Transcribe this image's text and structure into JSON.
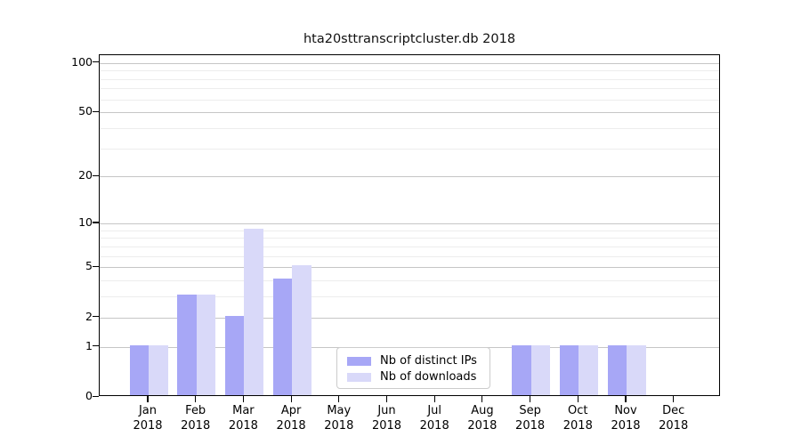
{
  "title": "hta20sttranscriptcluster.db 2018",
  "colors": {
    "ips_bar": "#a7a7f6",
    "downloads_bar": "#d9d9f9",
    "grid_major": "#c6c6c6",
    "grid_minor": "#ededed",
    "axis": "#000000",
    "legend_border": "#cccccc"
  },
  "legend": {
    "items": [
      {
        "label": "Nb of distinct IPs",
        "color_key": "ips_bar"
      },
      {
        "label": "Nb of downloads",
        "color_key": "downloads_bar"
      }
    ]
  },
  "x_axis": {
    "months": [
      "Jan",
      "Feb",
      "Mar",
      "Apr",
      "May",
      "Jun",
      "Jul",
      "Aug",
      "Sep",
      "Oct",
      "Nov",
      "Dec"
    ],
    "year": "2018"
  },
  "y_axis": {
    "tick_values": [
      100,
      50,
      20,
      10,
      5,
      2,
      1,
      0
    ],
    "minor_grid_values": [
      3,
      4,
      6,
      7,
      8,
      9,
      30,
      40,
      60,
      70,
      80,
      90
    ]
  },
  "chart_data": {
    "type": "bar",
    "title": "hta20sttranscriptcluster.db 2018",
    "categories": [
      "Jan 2018",
      "Feb 2018",
      "Mar 2018",
      "Apr 2018",
      "May 2018",
      "Jun 2018",
      "Jul 2018",
      "Aug 2018",
      "Sep 2018",
      "Oct 2018",
      "Nov 2018",
      "Dec 2018"
    ],
    "series": [
      {
        "name": "Nb of distinct IPs",
        "values": [
          1,
          3,
          2,
          4,
          0,
          0,
          0,
          0,
          1,
          1,
          1,
          0
        ]
      },
      {
        "name": "Nb of downloads",
        "values": [
          1,
          3,
          9,
          5,
          0,
          0,
          0,
          0,
          1,
          1,
          1,
          0
        ]
      }
    ],
    "xlabel": "",
    "ylabel": "",
    "y_scale": "log10(1+v)",
    "y_tick_labels": [
      "0",
      "1",
      "2",
      "5",
      "10",
      "20",
      "50",
      "100"
    ],
    "ylim": [
      0,
      112
    ],
    "grid": "on",
    "legend_position": "bottom-center-left inside plot"
  }
}
